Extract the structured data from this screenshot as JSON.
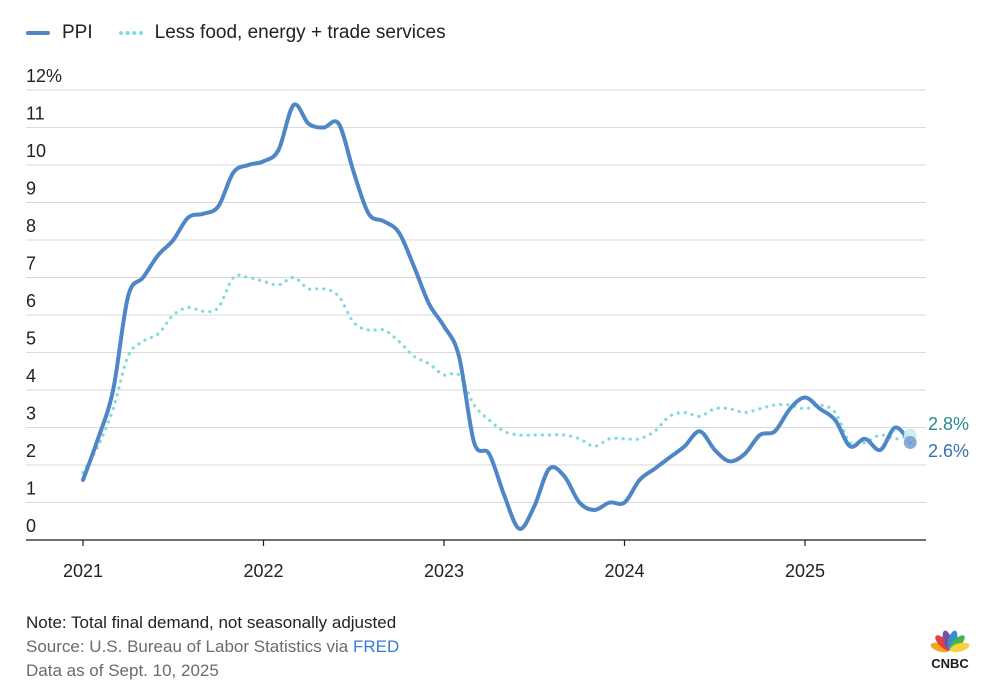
{
  "chart_data": {
    "type": "line",
    "title": "",
    "xlabel": "",
    "ylabel": "",
    "ylim": [
      0,
      12
    ],
    "xlim": [
      2021.0,
      2025.67
    ],
    "y_ticks": [
      "0",
      "1",
      "2",
      "3",
      "4",
      "5",
      "6",
      "7",
      "8",
      "9",
      "10",
      "11",
      "12%"
    ],
    "x_ticks": [
      {
        "label": "2021",
        "value": 2021
      },
      {
        "label": "2022",
        "value": 2022
      },
      {
        "label": "2023",
        "value": 2023
      },
      {
        "label": "2024",
        "value": 2024
      },
      {
        "label": "2025",
        "value": 2025
      }
    ],
    "grid": true,
    "legend_position": "top-left",
    "series": [
      {
        "name": "PPI",
        "color": "#4f86c6",
        "style": "solid",
        "end_label": "2.6%",
        "points": [
          [
            2021.0,
            1.6
          ],
          [
            2021.083,
            2.7
          ],
          [
            2021.167,
            4.0
          ],
          [
            2021.25,
            6.5
          ],
          [
            2021.333,
            7.0
          ],
          [
            2021.417,
            7.6
          ],
          [
            2021.5,
            8.0
          ],
          [
            2021.583,
            8.6
          ],
          [
            2021.667,
            8.7
          ],
          [
            2021.75,
            8.9
          ],
          [
            2021.833,
            9.8
          ],
          [
            2021.917,
            10.0
          ],
          [
            2022.0,
            10.1
          ],
          [
            2022.083,
            10.4
          ],
          [
            2022.167,
            11.6
          ],
          [
            2022.25,
            11.1
          ],
          [
            2022.333,
            11.0
          ],
          [
            2022.417,
            11.1
          ],
          [
            2022.5,
            9.8
          ],
          [
            2022.583,
            8.7
          ],
          [
            2022.667,
            8.5
          ],
          [
            2022.75,
            8.2
          ],
          [
            2022.833,
            7.3
          ],
          [
            2022.917,
            6.3
          ],
          [
            2023.0,
            5.7
          ],
          [
            2023.083,
            4.9
          ],
          [
            2023.167,
            2.6
          ],
          [
            2023.25,
            2.3
          ],
          [
            2023.333,
            1.2
          ],
          [
            2023.417,
            0.3
          ],
          [
            2023.5,
            0.9
          ],
          [
            2023.583,
            1.9
          ],
          [
            2023.667,
            1.7
          ],
          [
            2023.75,
            1.0
          ],
          [
            2023.833,
            0.8
          ],
          [
            2023.917,
            1.0
          ],
          [
            2024.0,
            1.0
          ],
          [
            2024.083,
            1.6
          ],
          [
            2024.167,
            1.9
          ],
          [
            2024.25,
            2.2
          ],
          [
            2024.333,
            2.5
          ],
          [
            2024.417,
            2.9
          ],
          [
            2024.5,
            2.4
          ],
          [
            2024.583,
            2.1
          ],
          [
            2024.667,
            2.3
          ],
          [
            2024.75,
            2.8
          ],
          [
            2024.833,
            2.9
          ],
          [
            2024.917,
            3.5
          ],
          [
            2025.0,
            3.8
          ],
          [
            2025.083,
            3.5
          ],
          [
            2025.167,
            3.2
          ],
          [
            2025.25,
            2.5
          ],
          [
            2025.333,
            2.7
          ],
          [
            2025.417,
            2.4
          ],
          [
            2025.5,
            3.0
          ],
          [
            2025.583,
            2.6
          ]
        ]
      },
      {
        "name": "Less food, energy + trade services",
        "color": "#7fdbe0",
        "style": "dotted",
        "end_label": "2.8%",
        "points": [
          [
            2021.0,
            1.8
          ],
          [
            2021.083,
            2.5
          ],
          [
            2021.167,
            3.5
          ],
          [
            2021.25,
            4.9
          ],
          [
            2021.333,
            5.3
          ],
          [
            2021.417,
            5.5
          ],
          [
            2021.5,
            6.0
          ],
          [
            2021.583,
            6.2
          ],
          [
            2021.667,
            6.1
          ],
          [
            2021.75,
            6.2
          ],
          [
            2021.833,
            7.0
          ],
          [
            2021.917,
            7.0
          ],
          [
            2022.0,
            6.9
          ],
          [
            2022.083,
            6.8
          ],
          [
            2022.167,
            7.0
          ],
          [
            2022.25,
            6.7
          ],
          [
            2022.333,
            6.7
          ],
          [
            2022.417,
            6.5
          ],
          [
            2022.5,
            5.8
          ],
          [
            2022.583,
            5.6
          ],
          [
            2022.667,
            5.6
          ],
          [
            2022.75,
            5.3
          ],
          [
            2022.833,
            4.9
          ],
          [
            2022.917,
            4.7
          ],
          [
            2023.0,
            4.4
          ],
          [
            2023.083,
            4.4
          ],
          [
            2023.167,
            3.6
          ],
          [
            2023.25,
            3.2
          ],
          [
            2023.333,
            2.9
          ],
          [
            2023.417,
            2.8
          ],
          [
            2023.5,
            2.8
          ],
          [
            2023.583,
            2.8
          ],
          [
            2023.667,
            2.8
          ],
          [
            2023.75,
            2.7
          ],
          [
            2023.833,
            2.5
          ],
          [
            2023.917,
            2.7
          ],
          [
            2024.0,
            2.7
          ],
          [
            2024.083,
            2.7
          ],
          [
            2024.167,
            2.9
          ],
          [
            2024.25,
            3.3
          ],
          [
            2024.333,
            3.4
          ],
          [
            2024.417,
            3.3
          ],
          [
            2024.5,
            3.5
          ],
          [
            2024.583,
            3.5
          ],
          [
            2024.667,
            3.4
          ],
          [
            2024.75,
            3.5
          ],
          [
            2024.833,
            3.6
          ],
          [
            2024.917,
            3.6
          ],
          [
            2025.0,
            3.5
          ],
          [
            2025.083,
            3.6
          ],
          [
            2025.167,
            3.4
          ],
          [
            2025.25,
            2.6
          ],
          [
            2025.333,
            2.6
          ],
          [
            2025.417,
            2.8
          ],
          [
            2025.5,
            2.7
          ],
          [
            2025.583,
            2.8
          ]
        ]
      }
    ]
  },
  "notes": {
    "note": "Note: Total final demand, not seasonally adjusted",
    "source_prefix": "Source: U.S. Bureau of Labor Statistics via ",
    "source_link": "FRED",
    "data_as_of": "Data as of Sept. 10, 2025"
  },
  "logo": {
    "text": "CNBC",
    "icon": "nbc-peacock-icon",
    "colors": [
      "#f5a623",
      "#e8403f",
      "#7b4fa3",
      "#2f8fd6",
      "#48b24f",
      "#f7d23e"
    ]
  }
}
